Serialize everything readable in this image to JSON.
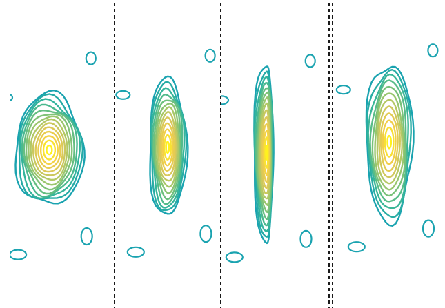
{
  "chart_data": {
    "type": "contour",
    "panel_count": 4,
    "panels": [
      {
        "name": "panel-1",
        "peak": [
          0.38,
          0.52
        ],
        "spread": [
          0.26,
          0.17
        ],
        "levels": 14
      },
      {
        "name": "panel-2",
        "peak": [
          0.5,
          0.51
        ],
        "spread": [
          0.14,
          0.21
        ],
        "levels": 13
      },
      {
        "name": "panel-3",
        "peak": [
          0.42,
          0.53
        ],
        "spread": [
          0.1,
          0.27
        ],
        "levels": 14
      },
      {
        "name": "panel-4",
        "peak": [
          0.52,
          0.49
        ],
        "spread": [
          0.17,
          0.24
        ],
        "levels": 12
      }
    ],
    "colormap": [
      "#1aa3b0",
      "#35b59a",
      "#6ec07d",
      "#a8c868",
      "#d9c85a",
      "#f3cf48",
      "#fff21e"
    ],
    "separator_style": "dashed",
    "separator_color": "#000000",
    "axes_visible": false,
    "grid": false,
    "legend": "none"
  }
}
